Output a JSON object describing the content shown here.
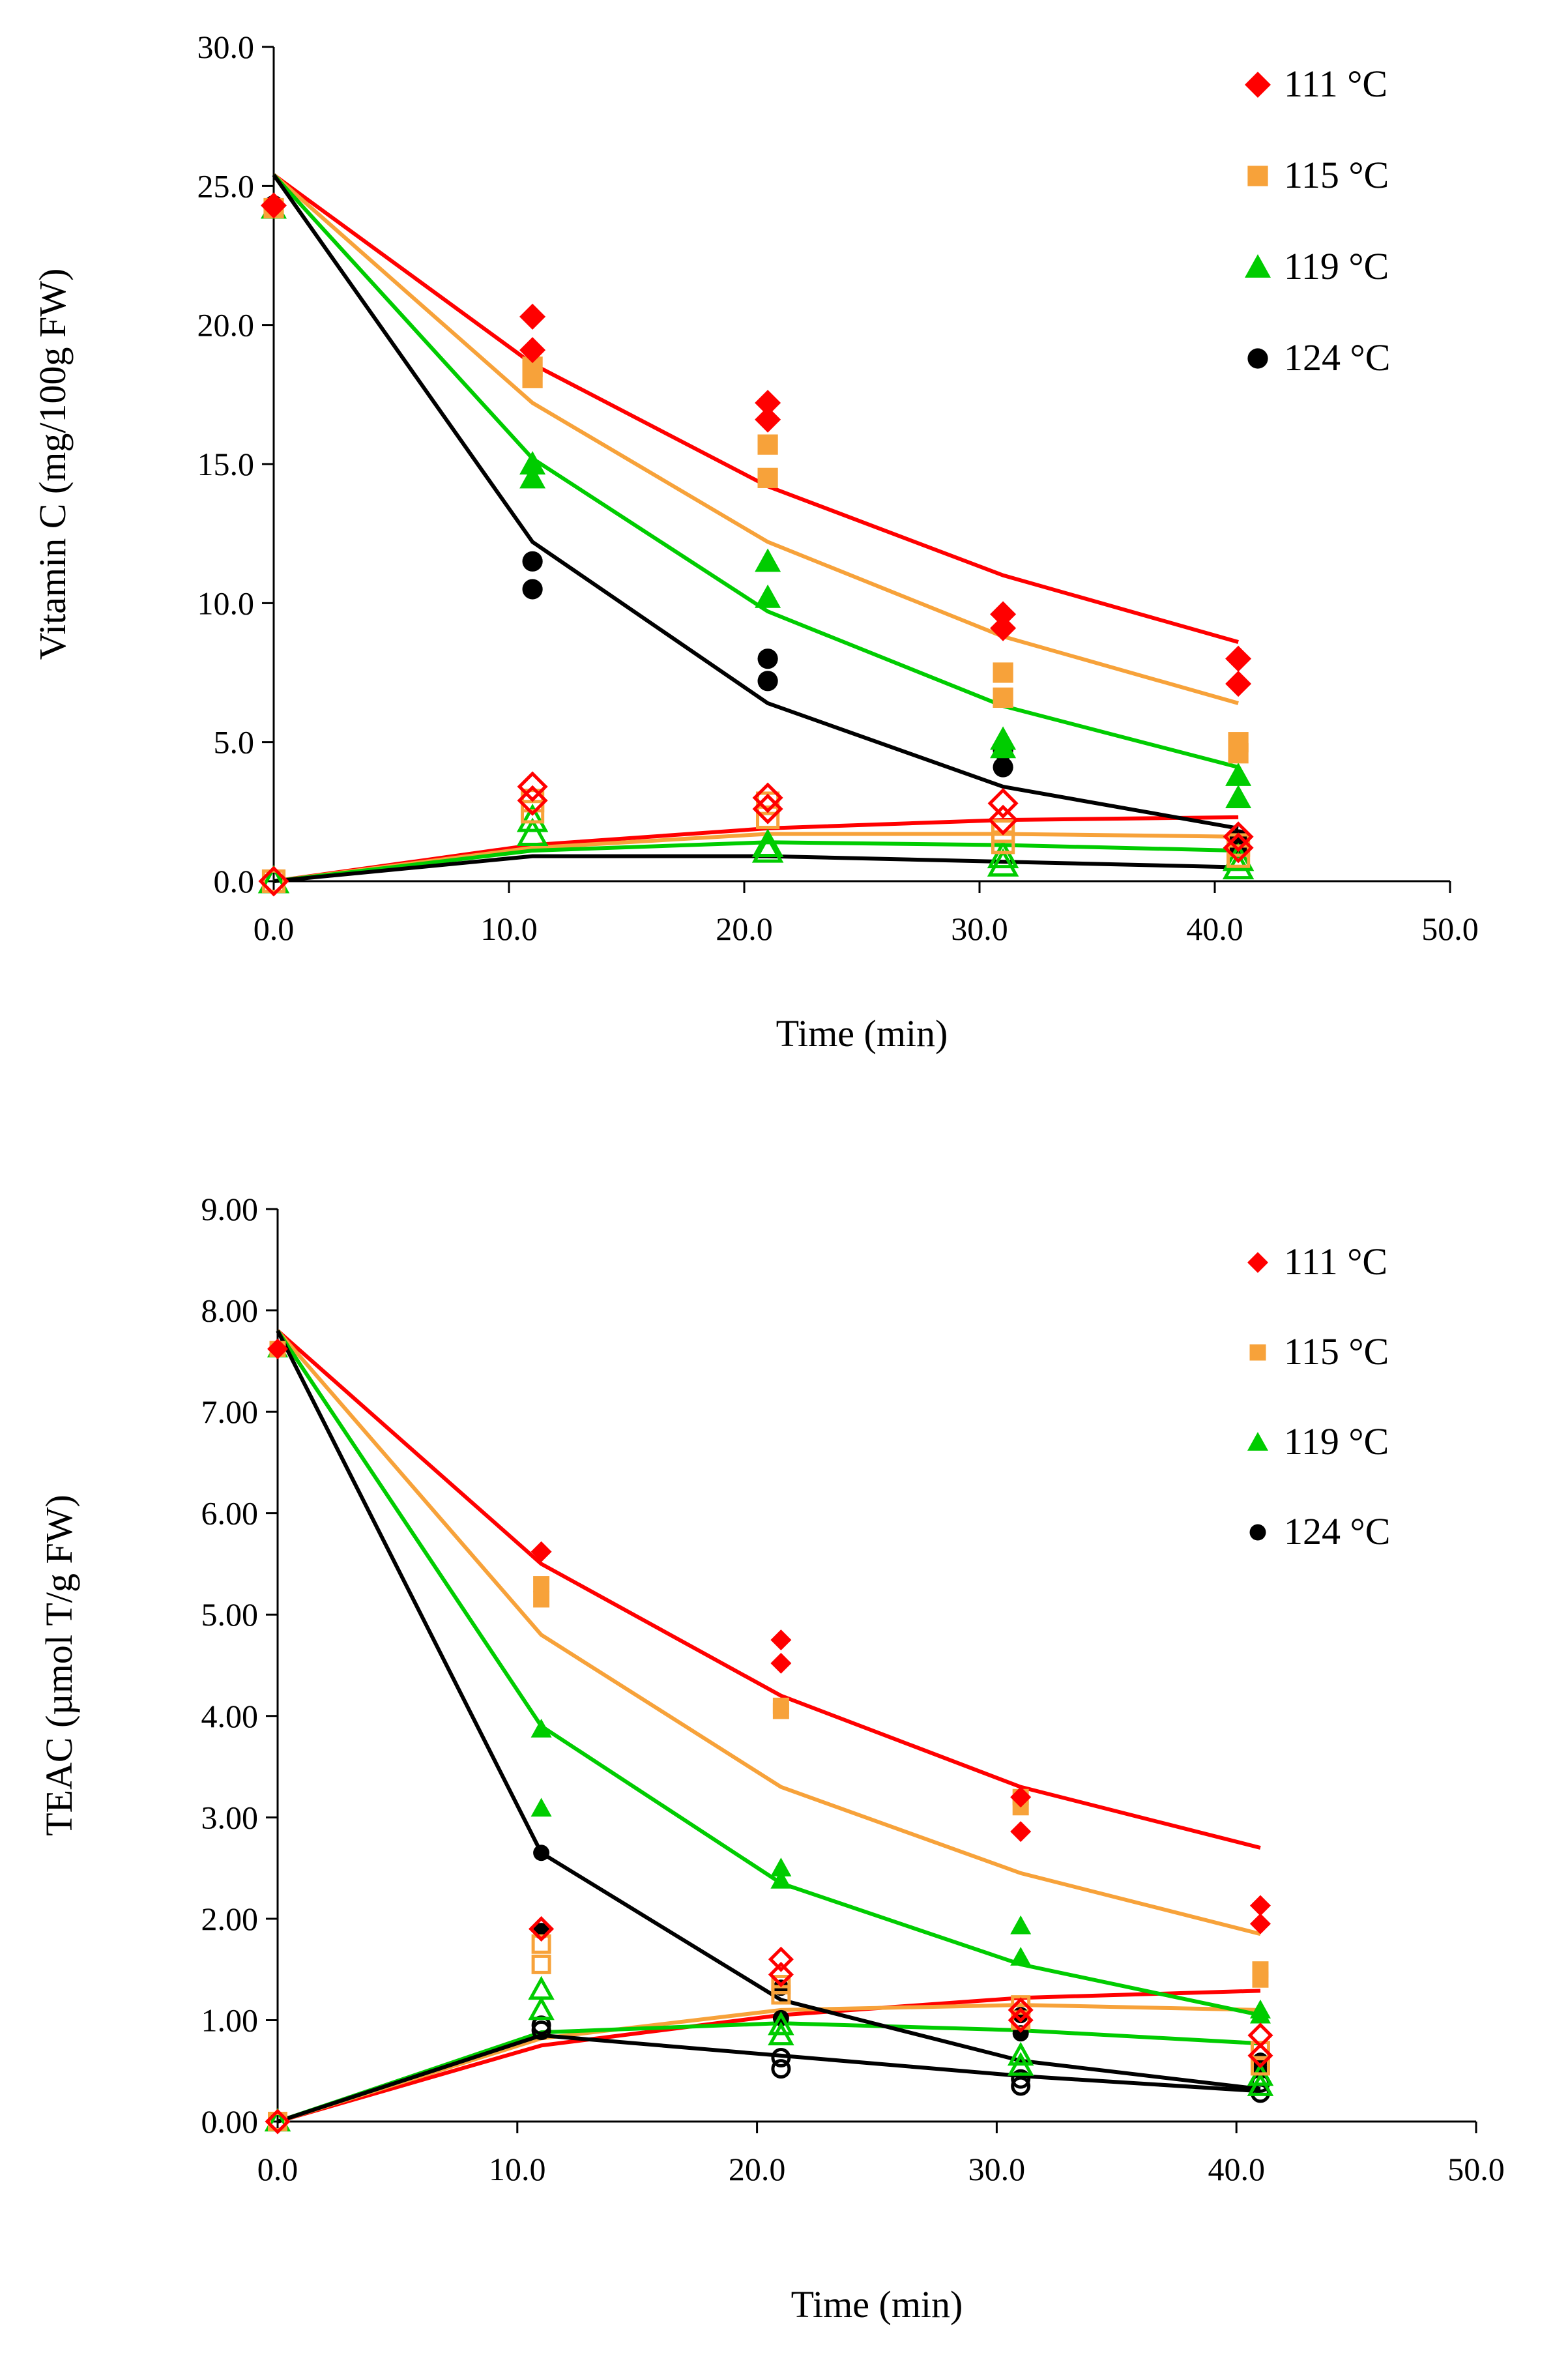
{
  "chart_data": [
    {
      "type": "scatter",
      "title": "",
      "xlabel": "Time (min)",
      "ylabel": "Vitamin C (mg/100g FW)",
      "xlim": [
        0,
        50
      ],
      "ylim": [
        0,
        30
      ],
      "xticks": [
        "0.0",
        "10.0",
        "20.0",
        "30.0",
        "40.0",
        "50.0"
      ],
      "yticks": [
        "0.0",
        "5.0",
        "10.0",
        "15.0",
        "20.0",
        "25.0",
        "30.0"
      ],
      "legend": {
        "position": "top-right",
        "entries": [
          "111 °C",
          "115 °C",
          "119 °C",
          "124 °C"
        ]
      },
      "series": [
        {
          "name": "111 °C",
          "color": "#ff0000",
          "marker": "diamond",
          "points": [
            [
              0,
              24.3
            ],
            [
              11,
              20.3
            ],
            [
              11,
              19.1
            ],
            [
              21,
              17.2
            ],
            [
              21,
              16.6
            ],
            [
              31,
              9.6
            ],
            [
              31,
              9.1
            ],
            [
              41,
              8.0
            ],
            [
              41,
              7.1
            ]
          ],
          "fit": [
            [
              0,
              25.4
            ],
            [
              11,
              18.6
            ],
            [
              21,
              14.2
            ],
            [
              31,
              11.0
            ],
            [
              41,
              8.6
            ]
          ],
          "open_points": [
            [
              0,
              0
            ],
            [
              11,
              3.4
            ],
            [
              11,
              2.9
            ],
            [
              21,
              3.0
            ],
            [
              21,
              2.6
            ],
            [
              31,
              2.8
            ],
            [
              31,
              2.2
            ],
            [
              41,
              1.6
            ],
            [
              41,
              1.2
            ]
          ],
          "open_fit": [
            [
              0,
              0
            ],
            [
              11,
              1.3
            ],
            [
              21,
              1.9
            ],
            [
              31,
              2.2
            ],
            [
              41,
              2.3
            ]
          ]
        },
        {
          "name": "115 °C",
          "color": "#f7a23a",
          "marker": "square",
          "points": [
            [
              0,
              24.2
            ],
            [
              11,
              18.5
            ],
            [
              11,
              18.1
            ],
            [
              21,
              15.7
            ],
            [
              21,
              14.5
            ],
            [
              31,
              7.5
            ],
            [
              31,
              6.6
            ],
            [
              41,
              5.0
            ],
            [
              41,
              4.6
            ]
          ],
          "fit": [
            [
              0,
              25.4
            ],
            [
              11,
              17.2
            ],
            [
              21,
              12.2
            ],
            [
              31,
              8.8
            ],
            [
              41,
              6.4
            ]
          ],
          "open_points": [
            [
              0,
              0
            ],
            [
              11,
              2.9
            ],
            [
              11,
              2.5
            ],
            [
              21,
              2.8
            ],
            [
              21,
              2.3
            ],
            [
              31,
              1.8
            ],
            [
              31,
              1.4
            ],
            [
              41,
              1.3
            ],
            [
              41,
              0.9
            ]
          ],
          "open_fit": [
            [
              0,
              0
            ],
            [
              11,
              1.2
            ],
            [
              21,
              1.7
            ],
            [
              31,
              1.7
            ],
            [
              41,
              1.6
            ]
          ]
        },
        {
          "name": "119 °C",
          "color": "#00cc00",
          "marker": "triangle",
          "points": [
            [
              0,
              24.2
            ],
            [
              11,
              15.0
            ],
            [
              11,
              14.5
            ],
            [
              21,
              11.5
            ],
            [
              21,
              10.2
            ],
            [
              31,
              5.1
            ],
            [
              31,
              4.8
            ],
            [
              41,
              3.8
            ],
            [
              41,
              3.0
            ]
          ],
          "fit": [
            [
              0,
              25.4
            ],
            [
              11,
              15.2
            ],
            [
              21,
              9.7
            ],
            [
              31,
              6.3
            ],
            [
              41,
              4.1
            ]
          ],
          "open_points": [
            [
              0,
              0
            ],
            [
              11,
              2.2
            ],
            [
              11,
              1.7
            ],
            [
              21,
              1.3
            ],
            [
              21,
              1.1
            ],
            [
              31,
              0.9
            ],
            [
              31,
              0.6
            ],
            [
              41,
              0.8
            ],
            [
              41,
              0.5
            ]
          ],
          "open_fit": [
            [
              0,
              0
            ],
            [
              11,
              1.1
            ],
            [
              21,
              1.4
            ],
            [
              31,
              1.3
            ],
            [
              41,
              1.1
            ]
          ]
        },
        {
          "name": "124 °C",
          "color": "#000000",
          "marker": "circle",
          "points": [
            [
              0,
              24.3
            ],
            [
              11,
              11.5
            ],
            [
              11,
              10.5
            ],
            [
              21,
              8.0
            ],
            [
              21,
              7.2
            ],
            [
              31,
              4.7
            ],
            [
              31,
              4.1
            ],
            [
              41,
              1.5
            ],
            [
              41,
              1.2
            ]
          ],
          "fit": [
            [
              0,
              25.4
            ],
            [
              11,
              12.2
            ],
            [
              21,
              6.4
            ],
            [
              31,
              3.4
            ],
            [
              41,
              1.9
            ]
          ],
          "open_points": [],
          "open_fit": [
            [
              0,
              0
            ],
            [
              11,
              0.9
            ],
            [
              21,
              0.9
            ],
            [
              31,
              0.7
            ],
            [
              41,
              0.5
            ]
          ]
        }
      ]
    },
    {
      "type": "scatter",
      "title": "",
      "xlabel": "Time (min)",
      "ylabel": "TEAC (µmol T/g FW)",
      "xlim": [
        0,
        50
      ],
      "ylim": [
        0,
        9
      ],
      "xticks": [
        "0.0",
        "10.0",
        "20.0",
        "30.0",
        "40.0",
        "50.0"
      ],
      "yticks": [
        "0.00",
        "1.00",
        "2.00",
        "3.00",
        "4.00",
        "5.00",
        "6.00",
        "7.00",
        "8.00",
        "9.00"
      ],
      "legend": {
        "position": "top-right",
        "entries": [
          "111 °C",
          "115 °C",
          "119 °C",
          "124 °C"
        ]
      },
      "series": [
        {
          "name": "111 °C",
          "color": "#ff0000",
          "marker": "diamond",
          "points": [
            [
              0,
              7.62
            ],
            [
              11,
              5.62
            ],
            [
              21,
              4.75
            ],
            [
              21,
              4.52
            ],
            [
              31,
              3.2
            ],
            [
              31,
              2.86
            ],
            [
              41,
              2.13
            ],
            [
              41,
              1.95
            ]
          ],
          "fit": [
            [
              0,
              7.8
            ],
            [
              11,
              5.5
            ],
            [
              21,
              4.2
            ],
            [
              31,
              3.3
            ],
            [
              41,
              2.7
            ]
          ],
          "open_points": [
            [
              0,
              0
            ],
            [
              11,
              1.9
            ],
            [
              21,
              1.6
            ],
            [
              21,
              1.45
            ],
            [
              31,
              1.1
            ],
            [
              31,
              1.0
            ],
            [
              41,
              0.85
            ],
            [
              41,
              0.65
            ]
          ],
          "open_fit": [
            [
              0,
              0
            ],
            [
              11,
              0.75
            ],
            [
              21,
              1.05
            ],
            [
              31,
              1.22
            ],
            [
              41,
              1.29
            ]
          ]
        },
        {
          "name": "115 °C",
          "color": "#f7a23a",
          "marker": "square",
          "points": [
            [
              0,
              7.62
            ],
            [
              11,
              5.3
            ],
            [
              11,
              5.15
            ],
            [
              21,
              4.1
            ],
            [
              21,
              4.05
            ],
            [
              31,
              3.2
            ],
            [
              31,
              3.1
            ],
            [
              41,
              1.5
            ],
            [
              41,
              1.4
            ]
          ],
          "fit": [
            [
              0,
              7.8
            ],
            [
              11,
              4.8
            ],
            [
              21,
              3.3
            ],
            [
              31,
              2.45
            ],
            [
              41,
              1.85
            ]
          ],
          "open_points": [
            [
              0,
              0
            ],
            [
              11,
              1.75
            ],
            [
              11,
              1.55
            ],
            [
              21,
              1.35
            ],
            [
              21,
              1.25
            ],
            [
              31,
              1.15
            ],
            [
              31,
              1.0
            ],
            [
              41,
              0.7
            ],
            [
              41,
              0.55
            ]
          ],
          "open_fit": [
            [
              0,
              0
            ],
            [
              11,
              0.82
            ],
            [
              21,
              1.1
            ],
            [
              31,
              1.15
            ],
            [
              41,
              1.1
            ]
          ]
        },
        {
          "name": "119 °C",
          "color": "#00cc00",
          "marker": "triangle",
          "points": [
            [
              0,
              7.62
            ],
            [
              11,
              3.87
            ],
            [
              11,
              3.09
            ],
            [
              21,
              2.5
            ],
            [
              21,
              2.38
            ],
            [
              31,
              1.93
            ],
            [
              31,
              1.62
            ],
            [
              41,
              1.1
            ],
            [
              41,
              1.05
            ]
          ],
          "fit": [
            [
              0,
              7.8
            ],
            [
              11,
              3.9
            ],
            [
              21,
              2.35
            ],
            [
              31,
              1.55
            ],
            [
              41,
              1.05
            ]
          ],
          "open_points": [
            [
              0,
              0
            ],
            [
              11,
              1.3
            ],
            [
              11,
              1.1
            ],
            [
              21,
              0.95
            ],
            [
              21,
              0.85
            ],
            [
              31,
              0.65
            ],
            [
              31,
              0.55
            ],
            [
              41,
              0.45
            ],
            [
              41,
              0.35
            ]
          ],
          "open_fit": [
            [
              0,
              0
            ],
            [
              11,
              0.88
            ],
            [
              21,
              0.97
            ],
            [
              31,
              0.9
            ],
            [
              41,
              0.77
            ]
          ]
        },
        {
          "name": "124 °C",
          "color": "#000000",
          "marker": "circle",
          "points": [
            [
              0,
              7.62
            ],
            [
              11,
              2.65
            ],
            [
              11,
              1.88
            ],
            [
              21,
              1.32
            ],
            [
              21,
              1.02
            ],
            [
              31,
              1.05
            ],
            [
              31,
              0.87
            ],
            [
              41,
              0.6
            ],
            [
              41,
              0.5
            ]
          ],
          "fit": [
            [
              0,
              7.8
            ],
            [
              11,
              2.65
            ],
            [
              21,
              1.2
            ],
            [
              31,
              0.6
            ],
            [
              41,
              0.32
            ]
          ],
          "open_points": [
            [
              0,
              0
            ],
            [
              11,
              0.95
            ],
            [
              11,
              0.9
            ],
            [
              21,
              0.63
            ],
            [
              21,
              0.52
            ],
            [
              31,
              0.42
            ],
            [
              31,
              0.35
            ],
            [
              41,
              0.38
            ],
            [
              41,
              0.28
            ]
          ],
          "open_fit": [
            [
              0,
              0
            ],
            [
              11,
              0.85
            ],
            [
              21,
              0.65
            ],
            [
              31,
              0.45
            ],
            [
              41,
              0.3
            ]
          ]
        }
      ]
    }
  ]
}
